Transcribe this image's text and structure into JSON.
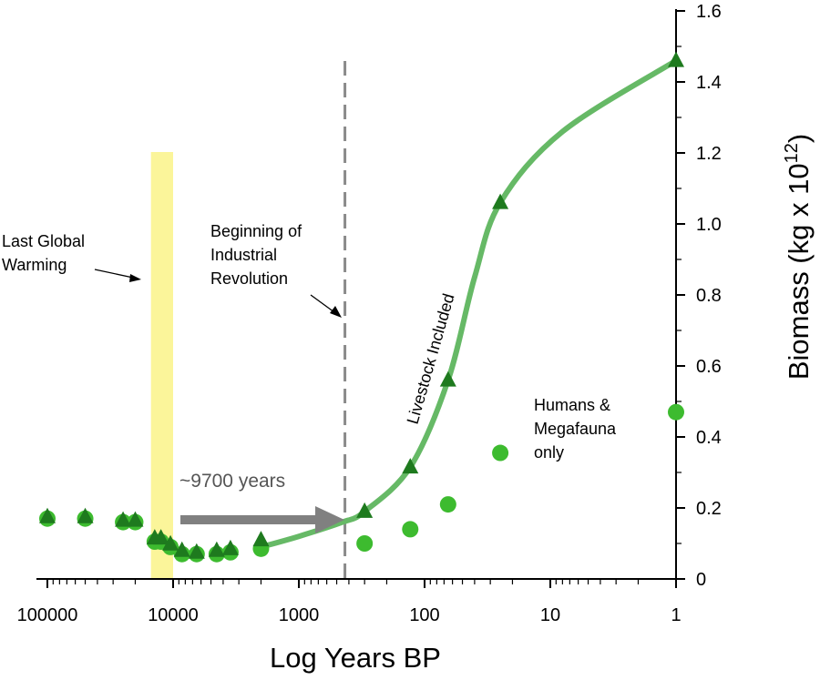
{
  "chart_data": {
    "type": "scatter",
    "title": "",
    "xlabel": "Log Years BP",
    "ylabel": "Biomass (kg x 10",
    "ylabel_exponent": "12",
    "ylabel_close": ")",
    "x_scale": "log",
    "x_reversed": true,
    "xlim": [
      100000,
      1
    ],
    "ylim": [
      0,
      1.6
    ],
    "x_ticks": [
      {
        "value": 100000,
        "label": "100000"
      },
      {
        "value": 10000,
        "label": "10000"
      },
      {
        "value": 1000,
        "label": "1000"
      },
      {
        "value": 100,
        "label": "100"
      },
      {
        "value": 10,
        "label": "10"
      },
      {
        "value": 1,
        "label": "1"
      }
    ],
    "y_ticks": [
      {
        "value": 0,
        "label": "0"
      },
      {
        "value": 0.2,
        "label": "0.2"
      },
      {
        "value": 0.4,
        "label": "0.4"
      },
      {
        "value": 0.6,
        "label": "0.6"
      },
      {
        "value": 0.8,
        "label": "0.8"
      },
      {
        "value": 1.0,
        "label": "1.0"
      },
      {
        "value": 1.2,
        "label": "1.2"
      },
      {
        "value": 1.4,
        "label": "1.4"
      },
      {
        "value": 1.6,
        "label": "1.6"
      }
    ],
    "y_axis_side": "right",
    "grid": false,
    "colors": {
      "triangle": "#1e7a1e",
      "circle": "#3dbb2f",
      "curve": "#66b966",
      "warming_band": "#fbf59a",
      "dashed_line": "#8a8a8a",
      "arrow": "#808080"
    },
    "series": [
      {
        "name": "Livestock Included",
        "marker": "triangle",
        "points": [
          {
            "x": 100000,
            "y": 0.175
          },
          {
            "x": 50000,
            "y": 0.175
          },
          {
            "x": 25000,
            "y": 0.165
          },
          {
            "x": 20000,
            "y": 0.165
          },
          {
            "x": 14000,
            "y": 0.115
          },
          {
            "x": 12500,
            "y": 0.115
          },
          {
            "x": 10500,
            "y": 0.098
          },
          {
            "x": 8500,
            "y": 0.08
          },
          {
            "x": 6500,
            "y": 0.075
          },
          {
            "x": 4500,
            "y": 0.08
          },
          {
            "x": 3500,
            "y": 0.085
          },
          {
            "x": 2000,
            "y": 0.11
          },
          {
            "x": 300,
            "y": 0.19
          },
          {
            "x": 130,
            "y": 0.315
          },
          {
            "x": 65,
            "y": 0.56
          },
          {
            "x": 25,
            "y": 1.06
          },
          {
            "x": 1,
            "y": 1.46
          }
        ]
      },
      {
        "name": "Humans & Megafauna only",
        "marker": "circle",
        "points": [
          {
            "x": 100000,
            "y": 0.17
          },
          {
            "x": 50000,
            "y": 0.17
          },
          {
            "x": 25000,
            "y": 0.16
          },
          {
            "x": 20000,
            "y": 0.16
          },
          {
            "x": 14000,
            "y": 0.105
          },
          {
            "x": 12500,
            "y": 0.105
          },
          {
            "x": 10500,
            "y": 0.09
          },
          {
            "x": 8500,
            "y": 0.07
          },
          {
            "x": 6500,
            "y": 0.07
          },
          {
            "x": 4500,
            "y": 0.07
          },
          {
            "x": 3500,
            "y": 0.075
          },
          {
            "x": 2000,
            "y": 0.085
          },
          {
            "x": 300,
            "y": 0.1
          },
          {
            "x": 130,
            "y": 0.14
          },
          {
            "x": 65,
            "y": 0.21
          },
          {
            "x": 25,
            "y": 0.355
          },
          {
            "x": 1,
            "y": 0.47
          }
        ]
      }
    ],
    "fit_curve": {
      "name": "Livestock Included",
      "points": [
        {
          "x": 2000,
          "y": 0.09
        },
        {
          "x": 1000,
          "y": 0.12
        },
        {
          "x": 450,
          "y": 0.16
        },
        {
          "x": 300,
          "y": 0.19
        },
        {
          "x": 130,
          "y": 0.315
        },
        {
          "x": 65,
          "y": 0.56
        },
        {
          "x": 40,
          "y": 0.85
        },
        {
          "x": 25,
          "y": 1.06
        },
        {
          "x": 8,
          "y": 1.26
        },
        {
          "x": 1,
          "y": 1.46
        }
      ]
    },
    "warming_band": {
      "from": 15000,
      "to": 10000
    },
    "industrial_line": {
      "x": 430
    },
    "annotations": {
      "last_warming": [
        "Last Global",
        "Warming"
      ],
      "industrial": [
        "Beginning of",
        "Industrial",
        "Revolution"
      ],
      "gap": "~9700 years",
      "livestock": "Livestock Included",
      "humans": [
        "Humans &",
        "Megafauna",
        "only"
      ]
    }
  }
}
